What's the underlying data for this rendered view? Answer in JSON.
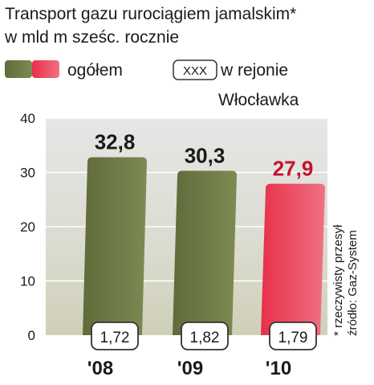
{
  "chart_data": {
    "type": "bar",
    "title_line1": "Transport gazu rurociągiem jamalskim*",
    "title_line2": "w mld m sześc. rocznie",
    "legend": {
      "total_label": "ogółem",
      "box_sample_text": "XXX",
      "region_label_line1": "w rejonie",
      "region_label_line2": "Włocławka"
    },
    "categories": [
      "'08",
      "'09",
      "'10"
    ],
    "series": [
      {
        "name": "ogółem",
        "values": [
          32.8,
          30.3,
          27.9
        ],
        "value_labels": [
          "32,8",
          "30,3",
          "27,9"
        ]
      },
      {
        "name": "w rejonie Włocławka",
        "values": [
          1.72,
          1.82,
          1.79
        ],
        "value_labels": [
          "1,72",
          "1,82",
          "1,79"
        ]
      }
    ],
    "ylim": [
      0,
      40
    ],
    "yticks": [
      0,
      10,
      20,
      30,
      40
    ],
    "ytick_labels": [
      "0",
      "10",
      "20",
      "30",
      "40"
    ],
    "grid": true,
    "footnote_line1": "* rzeczywisty przesył",
    "footnote_line2": "źródło: Gaz-System",
    "colors": {
      "total_bar": "#5f6b3a",
      "total_bar_highlight": "#7d8a52",
      "estimate_bar": "#e8304a",
      "estimate_bar_highlight": "#f07184",
      "estimate_value_text": "#c8102e",
      "value_text": "#1a1a1a",
      "plot_background_top": "#e6e6e6",
      "plot_background_bottom": "#cfd0b8",
      "box_border": "#333333",
      "box_fill": "#ffffff"
    },
    "highlighted_category": "'10"
  }
}
